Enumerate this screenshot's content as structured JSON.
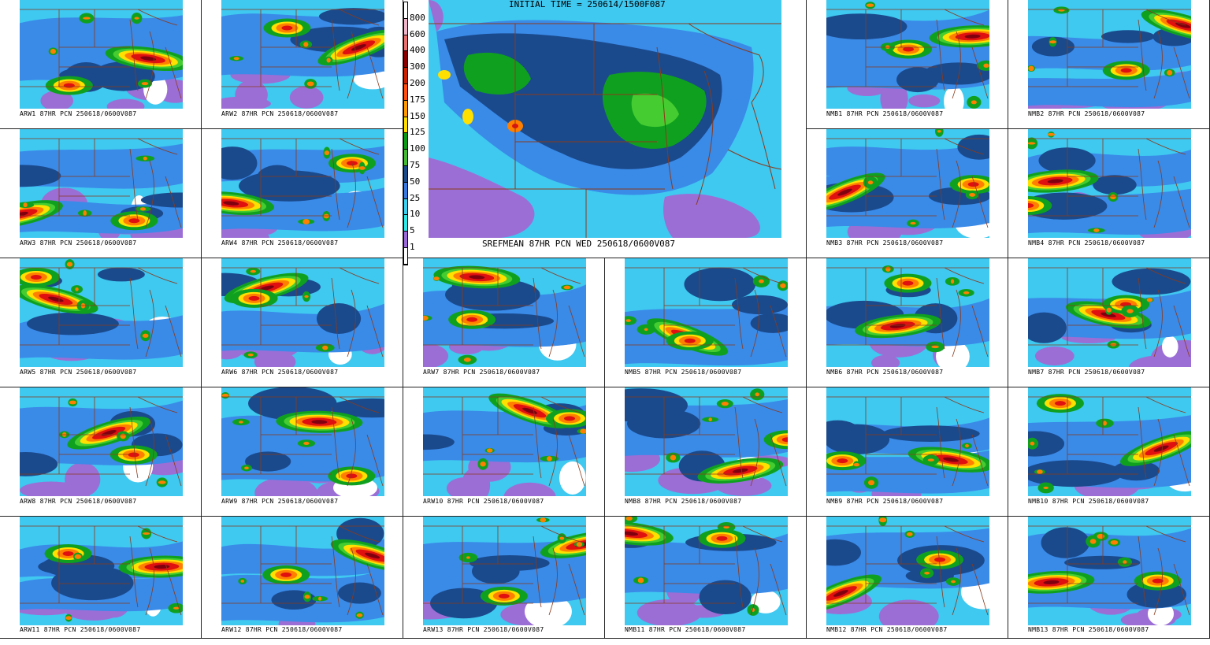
{
  "header": {
    "initial_time": "INITIAL TIME = 250614/1500F087",
    "center_caption": "SREFMEAN 87HR PCN WED 250618/0600V087"
  },
  "legend": {
    "labels": [
      "800",
      "600",
      "400",
      "300",
      "200",
      "175",
      "150",
      "125",
      "100",
      "75",
      "50",
      "25",
      "10",
      "5",
      "1"
    ],
    "colors": [
      "#ffffff",
      "#f0b4c8",
      "#e87070",
      "#8c0000",
      "#cc2200",
      "#ff5010",
      "#ff9a00",
      "#ffdd00",
      "#0a9a14",
      "#44bb33",
      "#1a4a8a",
      "#3a7ae0",
      "#3ad0f0",
      "#2ee8e8",
      "#9a6ad8",
      "#ffffff"
    ]
  },
  "colors": {
    "border": "#8b3a1a",
    "light_purple": "#9b6ed6",
    "cyan": "#3fc8f0",
    "blue": "#3a8ae8",
    "dark_blue": "#1a4a8c",
    "green": "#10a020",
    "light_green": "#44cc30",
    "yellow": "#ffe000",
    "orange": "#ff8000",
    "red": "#e01010",
    "dark_red": "#800010",
    "pink": "#e0a0b8"
  },
  "panels": [
    {
      "label": "ARW1 87HR PCN 250618/0600V087"
    },
    {
      "label": "ARW2 87HR PCN 250618/0600V087"
    },
    {
      "label": "NMB1 87HR PCN 250618/0600V087"
    },
    {
      "label": "NMB2 87HR PCN 250618/0600V087"
    },
    {
      "label": "ARW3 87HR PCN 250618/0600V087"
    },
    {
      "label": "ARW4 87HR PCN 250618/0600V087"
    },
    {
      "label": "NMB3 87HR PCN 250618/0600V087"
    },
    {
      "label": "NMB4 87HR PCN 250618/0600V087"
    },
    {
      "label": "ARW5 87HR PCN 250618/0600V087"
    },
    {
      "label": "ARW6 87HR PCN 250618/0600V087"
    },
    {
      "label": "ARW7 87HR PCN 250618/0600V087"
    },
    {
      "label": "NMB5 87HR PCN 250618/0600V087"
    },
    {
      "label": "NMB6 87HR PCN 250618/0600V087"
    },
    {
      "label": "NMB7 87HR PCN 250618/0600V087"
    },
    {
      "label": "ARW8 87HR PCN 250618/0600V087"
    },
    {
      "label": "ARW9 87HR PCN 250618/0600V087"
    },
    {
      "label": "ARW10 87HR PCN 250618/0600V087"
    },
    {
      "label": "NMB8 87HR PCN 250618/0600V087"
    },
    {
      "label": "NMB9 87HR PCN 250618/0600V087"
    },
    {
      "label": "NMB10 87HR PCN 250618/0600V087"
    },
    {
      "label": "ARW11 87HR PCN 250618/0600V087"
    },
    {
      "label": "ARW12 87HR PCN 250618/0600V087"
    },
    {
      "label": "ARW13 87HR PCN 250618/0600V087"
    },
    {
      "label": "NMB11 87HR PCN 250618/0600V087"
    },
    {
      "label": "NMB12 87HR PCN 250618/0600V087"
    },
    {
      "label": "NMB13 87HR PCN 250618/0600V087"
    }
  ]
}
